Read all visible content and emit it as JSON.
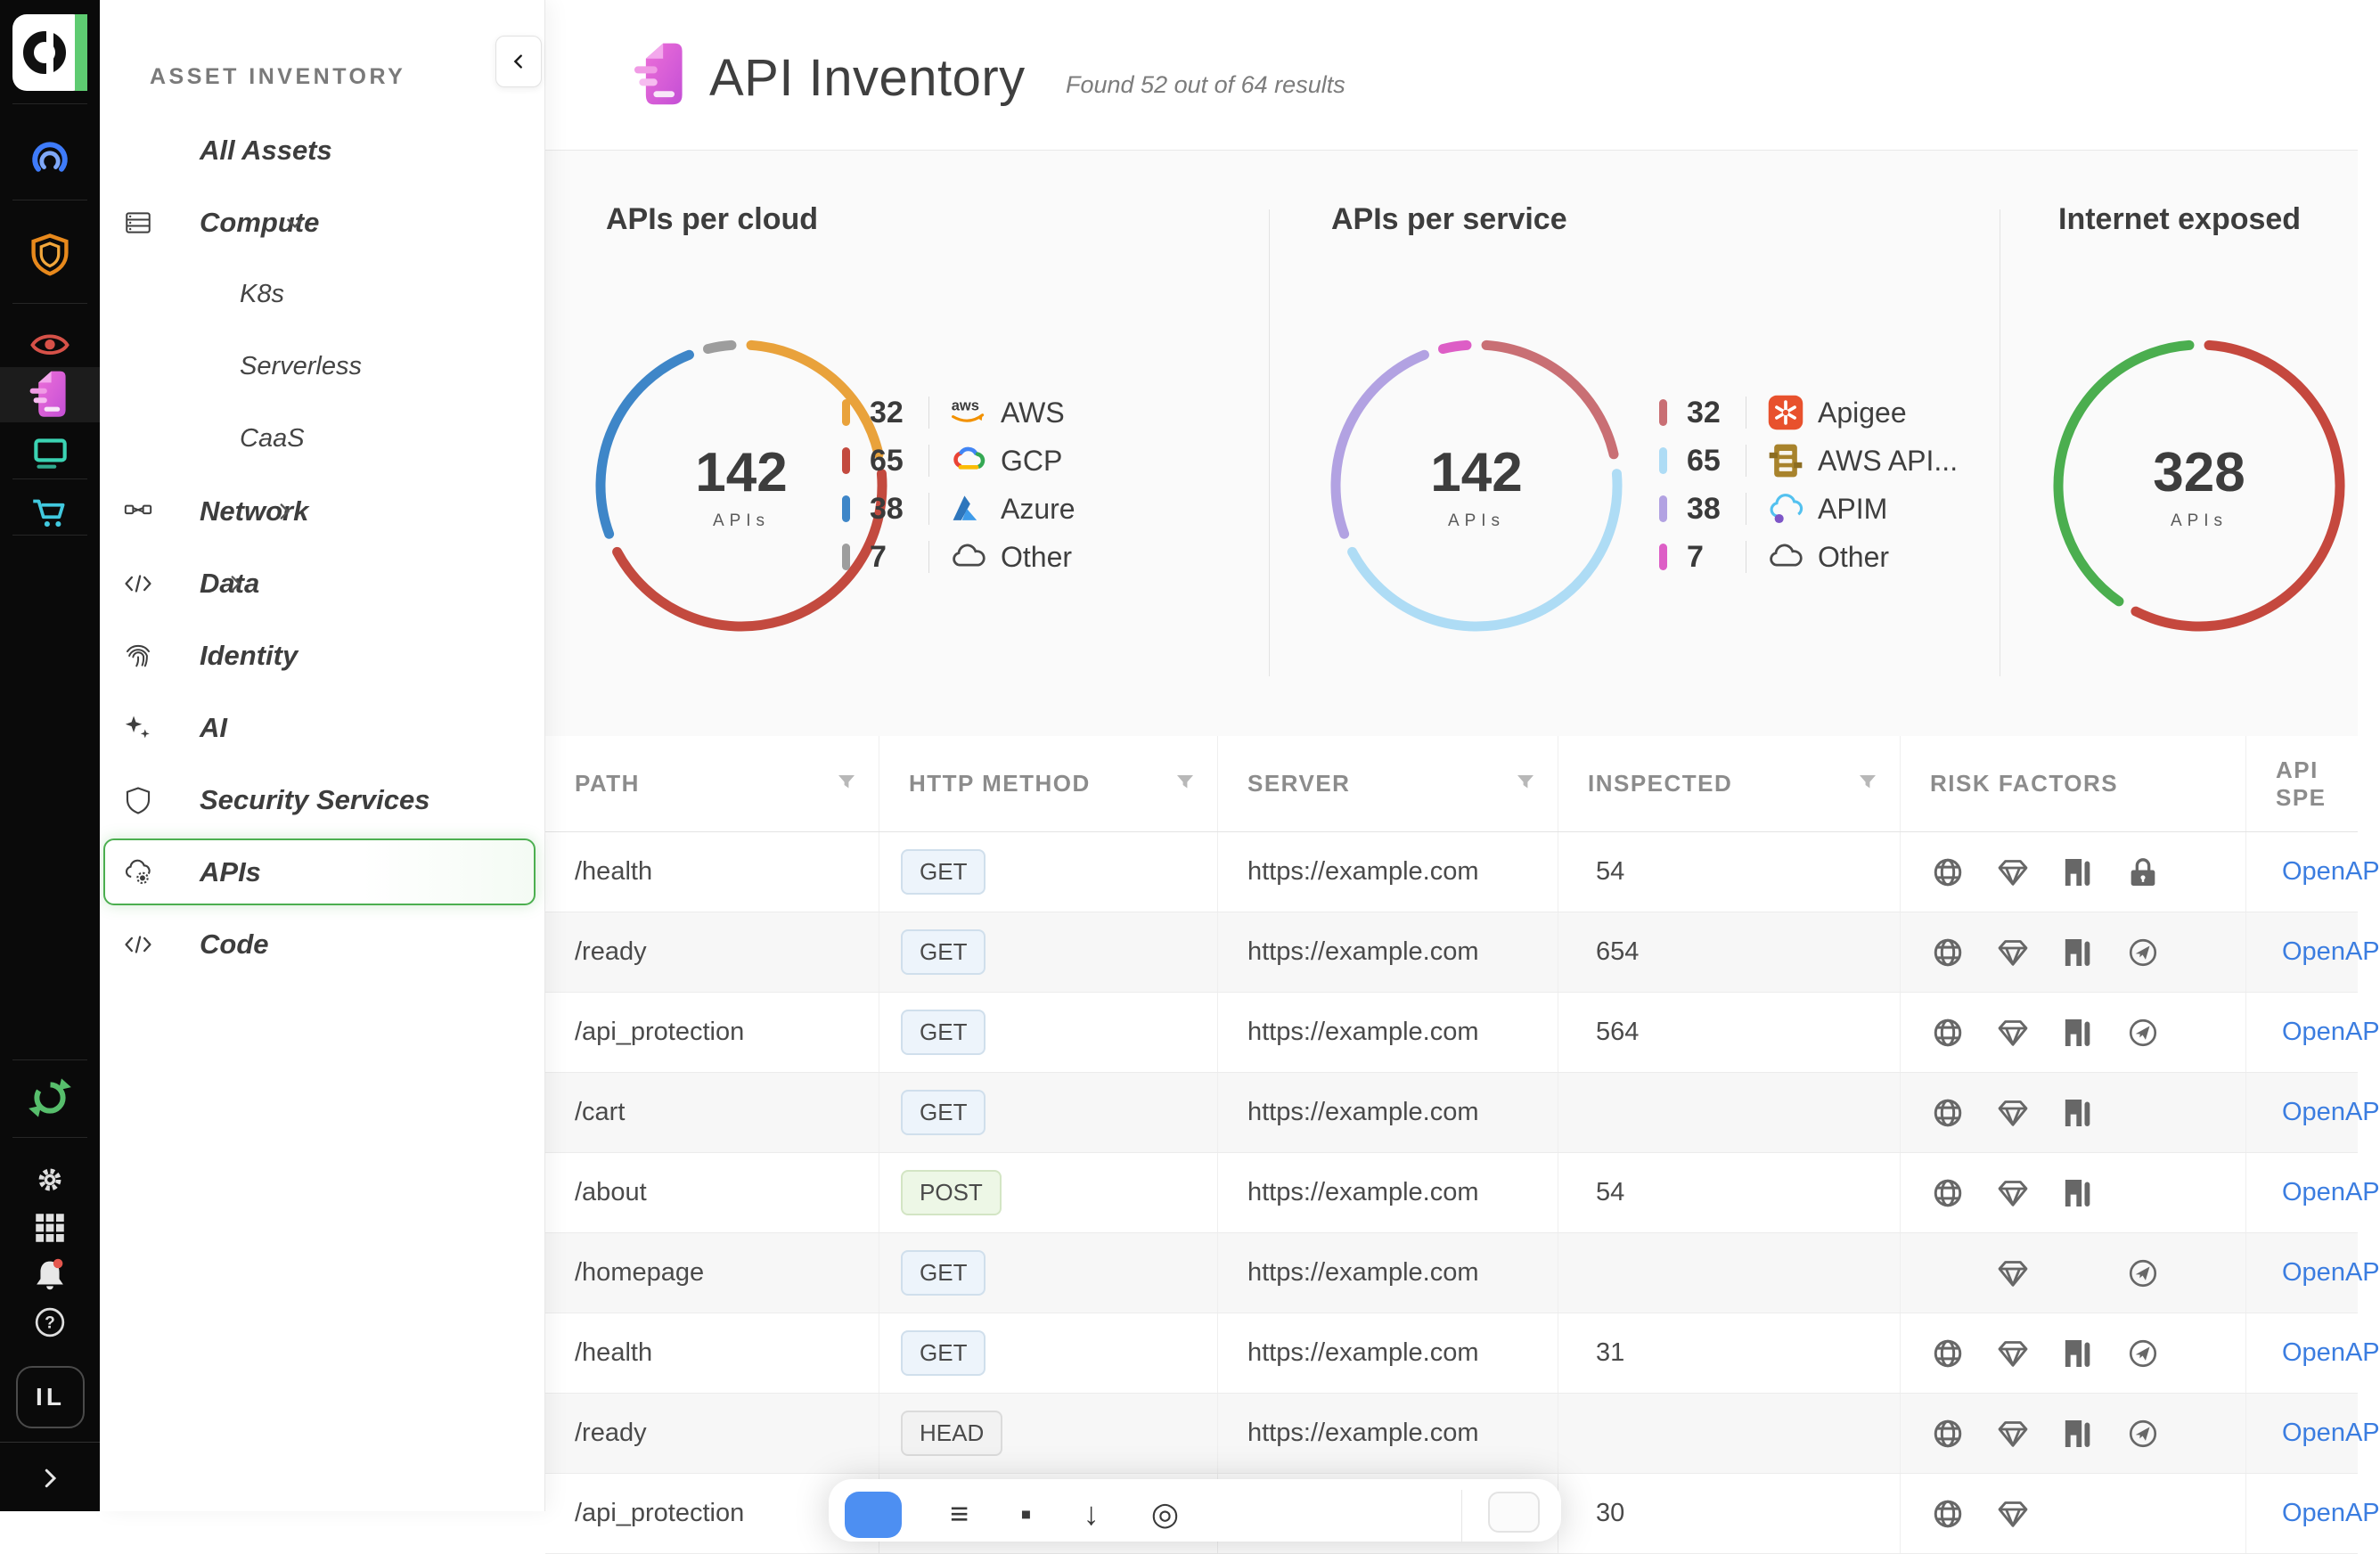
{
  "rail": {
    "avatar_initials": "IL"
  },
  "sidebar": {
    "section_label": "ASSET INVENTORY",
    "items": [
      {
        "label": "All Assets",
        "level": 1,
        "icon": "",
        "chevron": "",
        "selected": false
      },
      {
        "label": "Compute",
        "level": 1,
        "icon": "compute",
        "chevron": "down",
        "selected": false
      },
      {
        "label": "K8s",
        "level": 2,
        "icon": "",
        "chevron": "",
        "selected": false
      },
      {
        "label": "Serverless",
        "level": 2,
        "icon": "",
        "chevron": "",
        "selected": false
      },
      {
        "label": "CaaS",
        "level": 2,
        "icon": "",
        "chevron": "",
        "selected": false
      },
      {
        "label": "Network",
        "level": 1,
        "icon": "network",
        "chevron": "right",
        "selected": false
      },
      {
        "label": "Data",
        "level": 1,
        "icon": "code",
        "chevron": "right",
        "selected": false
      },
      {
        "label": "Identity",
        "level": 1,
        "icon": "fingerprint",
        "chevron": "",
        "selected": false
      },
      {
        "label": "AI",
        "level": 1,
        "icon": "sparkles",
        "chevron": "",
        "selected": false
      },
      {
        "label": "Security Services",
        "level": 1,
        "icon": "shield-outline",
        "chevron": "",
        "selected": false
      },
      {
        "label": "APIs",
        "level": 1,
        "icon": "api-cloud",
        "chevron": "",
        "selected": true
      },
      {
        "label": "Code",
        "level": 1,
        "icon": "code",
        "chevron": "",
        "selected": false
      }
    ]
  },
  "header": {
    "title": "API Inventory",
    "subtitle": "Found 52 out of 64 results"
  },
  "chart_data": [
    {
      "type": "pie",
      "title": "APIs per cloud",
      "center_value": "142",
      "center_label": "APIs",
      "legend_position": "right",
      "segments": [
        {
          "label": "AWS",
          "value": 32,
          "color": "#E9A23B",
          "icon": "aws"
        },
        {
          "label": "GCP",
          "value": 65,
          "color": "#C34A3F",
          "icon": "gcp"
        },
        {
          "label": "Azure",
          "value": 38,
          "color": "#3E86C8",
          "icon": "azure"
        },
        {
          "label": "Other",
          "value": 7,
          "color": "#9D9D9D",
          "icon": "cloud"
        }
      ]
    },
    {
      "type": "pie",
      "title": "APIs per service",
      "center_value": "142",
      "center_label": "APIs",
      "legend_position": "right",
      "segments": [
        {
          "label": "Apigee",
          "value": 32,
          "color": "#C96F74",
          "icon": "apigee"
        },
        {
          "label": "AWS API...",
          "value": 65,
          "color": "#AEDCF5",
          "icon": "aws-apigw"
        },
        {
          "label": "APIM",
          "value": 38,
          "color": "#B2A2E2",
          "icon": "apim"
        },
        {
          "label": "Other",
          "value": 7,
          "color": "#DD5EC6",
          "icon": "cloud"
        }
      ]
    },
    {
      "type": "pie",
      "title": "Internet exposed",
      "center_value": "328",
      "center_label": "APIs",
      "values_estimated": true,
      "segments": [
        {
          "label": "",
          "value": 192,
          "color": "#C5483E"
        },
        {
          "label": "",
          "value": 136,
          "color": "#4BAE4F"
        }
      ]
    }
  ],
  "table": {
    "columns": [
      {
        "label": "PATH",
        "filter": true
      },
      {
        "label": "HTTP METHOD",
        "filter": true
      },
      {
        "label": "SERVER",
        "filter": true
      },
      {
        "label": "INSPECTED",
        "filter": true
      },
      {
        "label": "RISK FACTORS",
        "filter": false
      },
      {
        "label": "API SPE",
        "filter": false
      }
    ],
    "rows": [
      {
        "path": "/health",
        "method": "GET",
        "server": "https://example.com",
        "inspected": "54",
        "risk": [
          "globe",
          "gem",
          "door",
          "lock"
        ],
        "spec": "OpenAP"
      },
      {
        "path": "/ready",
        "method": "GET",
        "server": "https://example.com",
        "inspected": "654",
        "risk": [
          "globe",
          "gem",
          "door",
          "plane"
        ],
        "spec": "OpenAP"
      },
      {
        "path": "/api_protection",
        "method": "GET",
        "server": "https://example.com",
        "inspected": "564",
        "risk": [
          "globe",
          "gem",
          "door",
          "plane"
        ],
        "spec": "OpenAP"
      },
      {
        "path": "/cart",
        "method": "GET",
        "server": "https://example.com",
        "inspected": "",
        "risk": [
          "globe",
          "gem",
          "door",
          ""
        ],
        "spec": "OpenAP"
      },
      {
        "path": "/about",
        "method": "POST",
        "server": "https://example.com",
        "inspected": "54",
        "risk": [
          "globe",
          "gem",
          "door",
          ""
        ],
        "spec": "OpenAP"
      },
      {
        "path": "/homepage",
        "method": "GET",
        "server": "https://example.com",
        "inspected": "",
        "risk": [
          "",
          "gem",
          "",
          "plane"
        ],
        "spec": "OpenAP"
      },
      {
        "path": "/health",
        "method": "GET",
        "server": "https://example.com",
        "inspected": "31",
        "risk": [
          "globe",
          "gem",
          "door",
          "plane"
        ],
        "spec": "OpenAP"
      },
      {
        "path": "/ready",
        "method": "HEAD",
        "server": "https://example.com",
        "inspected": "",
        "risk": [
          "globe",
          "gem",
          "door",
          "plane"
        ],
        "spec": "OpenAP"
      },
      {
        "path": "/api_protection",
        "method": "",
        "server": "",
        "inspected": "30",
        "risk": [
          "globe",
          "gem",
          "",
          ""
        ],
        "spec": "OpenAP"
      }
    ]
  },
  "floating_toolbar": {
    "icons": [
      {
        "name": "menu-icon",
        "glyph": "≡"
      },
      {
        "name": "stop-icon",
        "glyph": "▪"
      },
      {
        "name": "download-icon",
        "glyph": "↓"
      },
      {
        "name": "target-icon",
        "glyph": "◎"
      }
    ]
  }
}
